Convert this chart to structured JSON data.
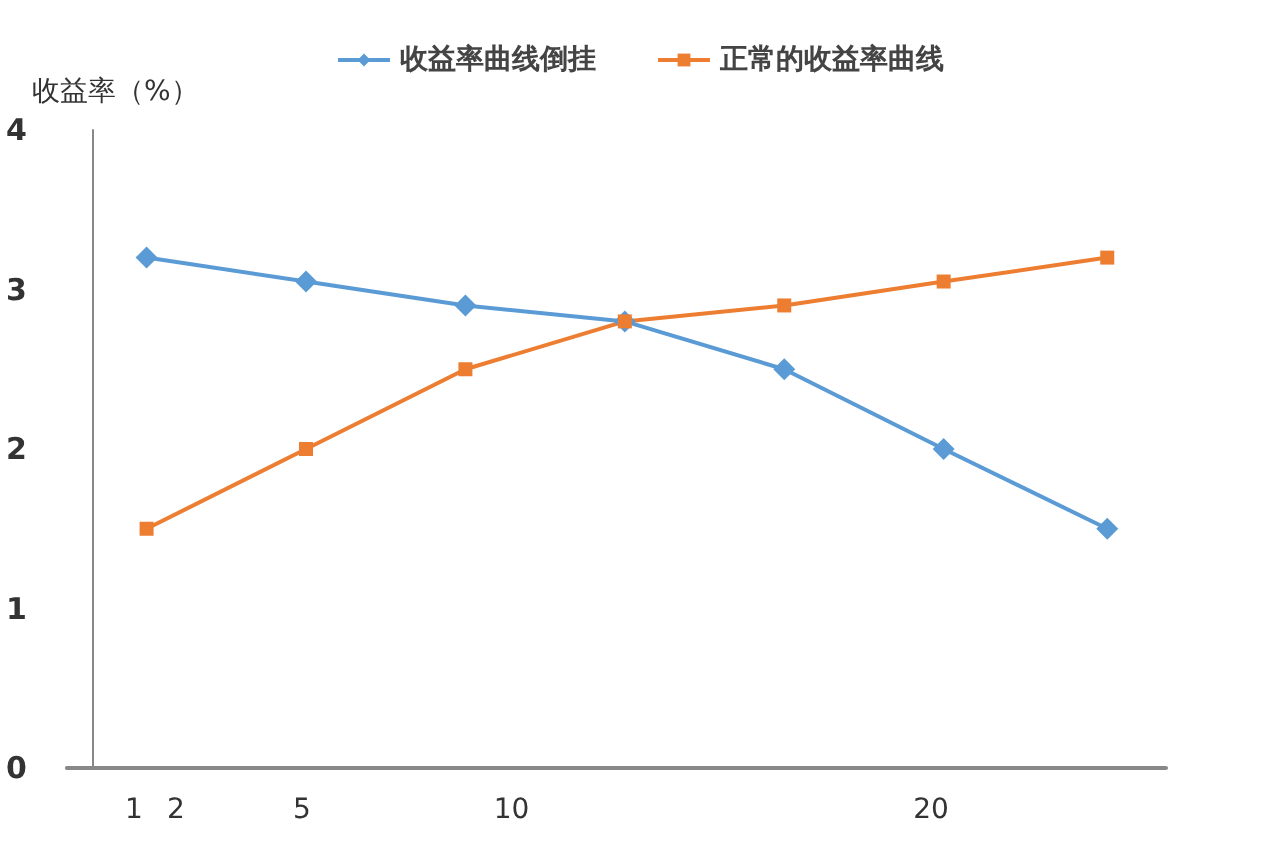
{
  "chart_data": {
    "type": "line",
    "ylabel": "收益率（%）",
    "x": [
      1.3,
      5.1,
      8.9,
      12.7,
      16.5,
      20.3,
      24.2
    ],
    "series": [
      {
        "name": "收益率曲线倒挂",
        "color": "#5b9bd5",
        "marker": "diamond",
        "values": [
          3.2,
          3.05,
          2.9,
          2.8,
          2.5,
          2.0,
          1.5
        ]
      },
      {
        "name": "正常的收益率曲线",
        "color": "#ed7d31",
        "marker": "square",
        "values": [
          1.5,
          2.0,
          2.5,
          2.8,
          2.9,
          3.05,
          3.2
        ]
      }
    ],
    "xlim": [
      -0.6,
      25.6
    ],
    "xticks": [
      1,
      2,
      5,
      10,
      20
    ],
    "ylim": [
      0,
      4
    ],
    "yticks": [
      0,
      1,
      2,
      3,
      4
    ],
    "grid": false,
    "legend": "top"
  }
}
